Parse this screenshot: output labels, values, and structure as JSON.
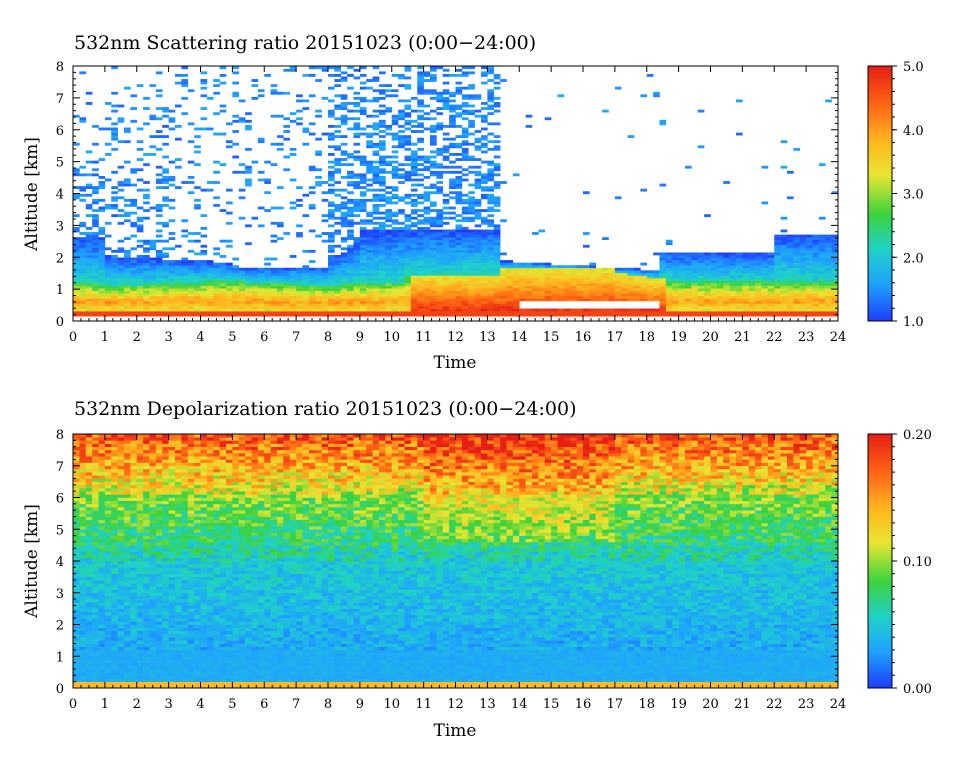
{
  "chart_data": [
    {
      "type": "heatmap",
      "title": "532nm Scattering ratio  20151023 (0:00−24:00)",
      "xlabel": "Time",
      "ylabel": "Altitude [km]",
      "x_ticks": [
        "0",
        "1",
        "2",
        "3",
        "4",
        "5",
        "6",
        "7",
        "8",
        "9",
        "10",
        "11",
        "12",
        "13",
        "14",
        "15",
        "16",
        "17",
        "18",
        "19",
        "20",
        "21",
        "22",
        "23",
        "24"
      ],
      "y_ticks": [
        "0",
        "1",
        "2",
        "3",
        "4",
        "5",
        "6",
        "7",
        "8"
      ],
      "xlim": [
        0,
        24
      ],
      "ylim": [
        0,
        8
      ],
      "colorbar": {
        "labels": [
          "1.0",
          "2.0",
          "3.0",
          "4.0",
          "5.0"
        ],
        "range": [
          1.0,
          5.0
        ]
      },
      "colormap": [
        "#1e3cff",
        "#1ea0ff",
        "#1ed2c8",
        "#3cd23c",
        "#e6e632",
        "#ffb41e",
        "#ff6414",
        "#e61e14"
      ],
      "description_layers": [
        {
          "time": [
            0,
            24
          ],
          "alt": [
            0.15,
            0.25
          ],
          "value": 4.6
        },
        {
          "time": [
            0,
            10.5
          ],
          "alt": [
            0.25,
            1.1
          ],
          "value": 3.8
        },
        {
          "time": [
            10.5,
            13.4
          ],
          "alt": [
            0.25,
            1.4
          ],
          "value": 4.5
        },
        {
          "time": [
            13.4,
            18.5
          ],
          "alt": [
            0.3,
            1.6
          ],
          "value": 4.7
        },
        {
          "time": [
            18.5,
            24
          ],
          "alt": [
            0.3,
            1.2
          ],
          "value": 4.2
        },
        {
          "time": [
            0,
            24
          ],
          "alt": [
            1.1,
            2.6
          ],
          "value": 1.5
        },
        {
          "time": [
            9,
            13.4
          ],
          "alt": [
            2.6,
            8.0
          ],
          "value": 1.3
        }
      ]
    },
    {
      "type": "heatmap",
      "title": "532nm Depolarization ratio  20151023 (0:00−24:00)",
      "xlabel": "Time",
      "ylabel": "Altitude [km]",
      "x_ticks": [
        "0",
        "1",
        "2",
        "3",
        "4",
        "5",
        "6",
        "7",
        "8",
        "9",
        "10",
        "11",
        "12",
        "13",
        "14",
        "15",
        "16",
        "17",
        "18",
        "19",
        "20",
        "21",
        "22",
        "23",
        "24"
      ],
      "y_ticks": [
        "0",
        "1",
        "2",
        "3",
        "4",
        "5",
        "6",
        "7",
        "8"
      ],
      "xlim": [
        0,
        24
      ],
      "ylim": [
        0,
        8
      ],
      "colorbar": {
        "labels": [
          "0.00",
          "0.10",
          "0.20"
        ],
        "range": [
          0.0,
          0.2
        ]
      },
      "colormap": [
        "#1e3cff",
        "#1ea0ff",
        "#1ed2c8",
        "#3cd23c",
        "#e6e632",
        "#ffb41e",
        "#ff6414",
        "#e61e14"
      ],
      "description_layers": [
        {
          "alt": [
            0,
            0.15
          ],
          "value": 0.14
        },
        {
          "alt": [
            0.15,
            4.0
          ],
          "value": 0.035
        },
        {
          "alt": [
            4.0,
            6.0
          ],
          "value": 0.07
        },
        {
          "alt": [
            6.0,
            8.0
          ],
          "value": 0.15
        }
      ]
    }
  ]
}
